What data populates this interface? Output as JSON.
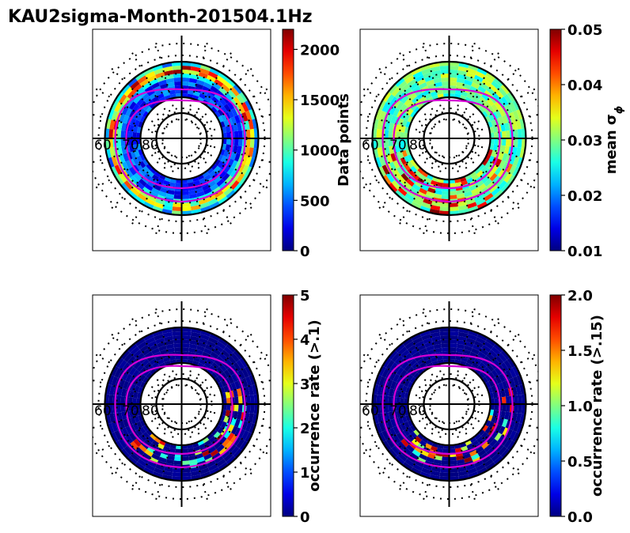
{
  "figure": {
    "title": "KAU2sigma-Month-201504.1Hz"
  },
  "chart_data": [
    {
      "type": "heatmap",
      "projection": "polar",
      "colormap": "jet",
      "latitude_labels": [
        "60",
        "70",
        "80"
      ],
      "colorbar": {
        "label": "Data points",
        "range": [
          0,
          2200
        ],
        "ticks": [
          "0",
          "500",
          "1000",
          "1500",
          "2000"
        ],
        "tick_values": [
          0,
          500,
          1000,
          1500,
          2000
        ]
      },
      "pattern": "ring",
      "seed": 3
    },
    {
      "type": "heatmap",
      "projection": "polar",
      "colormap": "jet",
      "latitude_labels": [
        "60",
        "70",
        "80"
      ],
      "colorbar": {
        "label": "mean σ",
        "label_subscript": "ϕ",
        "range": [
          0.01,
          0.05
        ],
        "ticks": [
          "0.01",
          "0.02",
          "0.03",
          "0.04",
          "0.05"
        ],
        "tick_values": [
          0.01,
          0.02,
          0.03,
          0.04,
          0.05
        ]
      },
      "pattern": "mean",
      "seed": 11
    },
    {
      "type": "heatmap",
      "projection": "polar",
      "colormap": "jet",
      "latitude_labels": [
        "60",
        "70",
        "80"
      ],
      "colorbar": {
        "label": "occurrence rate (>.1)",
        "range": [
          0,
          5
        ],
        "ticks": [
          "0",
          "1",
          "2",
          "3",
          "4",
          "5"
        ],
        "tick_values": [
          0,
          1,
          2,
          3,
          4,
          5
        ]
      },
      "pattern": "occurrence",
      "seed": 23
    },
    {
      "type": "heatmap",
      "projection": "polar",
      "colormap": "jet",
      "latitude_labels": [
        "60",
        "70",
        "80"
      ],
      "colorbar": {
        "label": "occurrence rate (>.15)",
        "range": [
          0,
          2
        ],
        "ticks": [
          "0.0",
          "0.5",
          "1.0",
          "1.5",
          "2.0"
        ],
        "tick_values": [
          0,
          0.5,
          1.0,
          1.5,
          2.0
        ]
      },
      "pattern": "occurrence",
      "seed": 37
    }
  ]
}
